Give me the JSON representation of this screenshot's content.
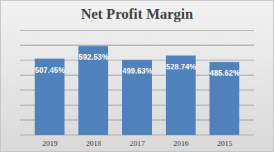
{
  "chart_data": {
    "type": "bar",
    "title": "Net Profit Margin",
    "categories": [
      "2019",
      "2018",
      "2017",
      "2016",
      "2015"
    ],
    "values": [
      507.45,
      592.53,
      499.63,
      528.74,
      485.62
    ],
    "value_labels": [
      "507.45%",
      "592.53%",
      "499.63%",
      "528.74%",
      "485.62%"
    ],
    "color": "#4f81bd",
    "ylim": [
      0,
      700
    ],
    "yticks": [
      0,
      100,
      200,
      300,
      400,
      500,
      600,
      700
    ],
    "grid": true,
    "data_labels": true,
    "tick_labels": "x"
  }
}
